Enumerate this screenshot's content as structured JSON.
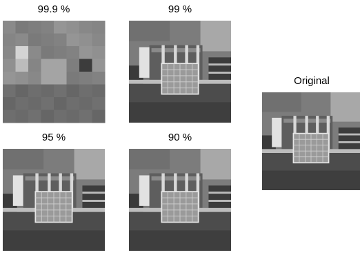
{
  "panels": [
    {
      "label": "99.9 %"
    },
    {
      "label": "99 %"
    },
    {
      "label": "95 %"
    },
    {
      "label": "90 %"
    },
    {
      "label": "Original"
    }
  ]
}
